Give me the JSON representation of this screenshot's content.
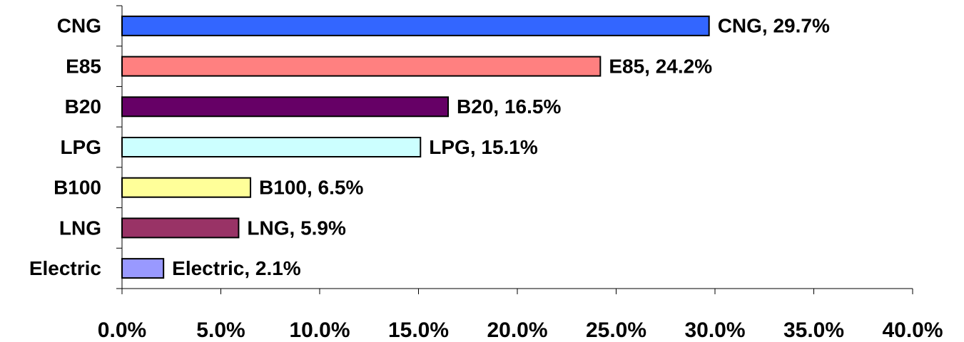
{
  "chart_data": {
    "type": "bar",
    "orientation": "horizontal",
    "categories": [
      "CNG",
      "E85",
      "B20",
      "LPG",
      "B100",
      "LNG",
      "Electric"
    ],
    "values": [
      29.7,
      24.2,
      16.5,
      15.1,
      6.5,
      5.9,
      2.1
    ],
    "value_labels": [
      "CNG, 29.7%",
      "E85, 24.2%",
      "B20, 16.5%",
      "LPG, 15.1%",
      "B100, 6.5%",
      "LNG, 5.9%",
      "Electric, 2.1%"
    ],
    "colors": [
      "#3366ff",
      "#ff8080",
      "#660066",
      "#ccffff",
      "#ffff99",
      "#993366",
      "#9999ff"
    ],
    "xlim": [
      0,
      40
    ],
    "xticks": [
      {
        "value": 0,
        "label": "0.0%"
      },
      {
        "value": 5,
        "label": "5.0%"
      },
      {
        "value": 10,
        "label": "10.0%"
      },
      {
        "value": 15,
        "label": "15.0%"
      },
      {
        "value": 20,
        "label": "20.0%"
      },
      {
        "value": 25,
        "label": "25.0%"
      },
      {
        "value": 30,
        "label": "30.0%"
      },
      {
        "value": 35,
        "label": "35.0%"
      },
      {
        "value": 40,
        "label": "40.0%"
      }
    ],
    "grid": false
  }
}
